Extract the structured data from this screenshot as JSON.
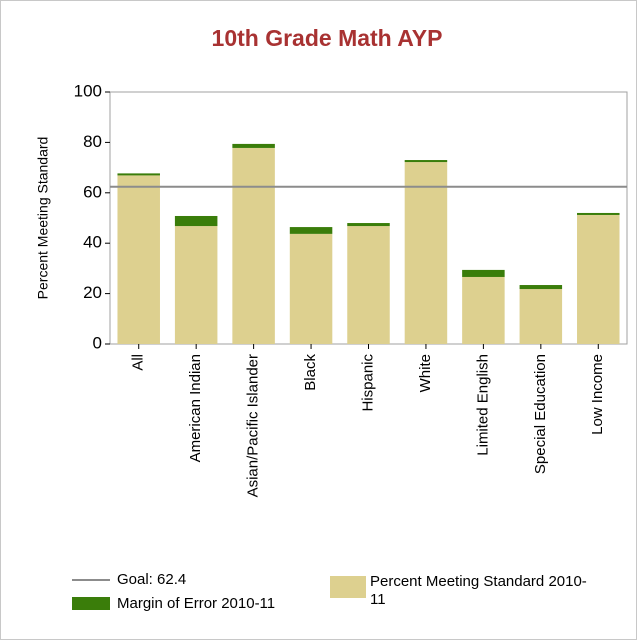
{
  "chart_data": {
    "type": "stacked_bar",
    "title": "10th Grade Math AYP",
    "y_label": "Percent Meeting Standard",
    "categories": [
      "All",
      "American Indian",
      "Asian/Pacific Islander",
      "Black",
      "Hispanic",
      "White",
      "Limited English",
      "Special Education",
      "Low Income"
    ],
    "series": [
      {
        "name": "Percent Meeting Standard 2010-11",
        "color": "#ddd08f",
        "values": [
          66.9,
          46.8,
          77.8,
          43.7,
          46.8,
          72.2,
          26.6,
          21.8,
          51.2
        ]
      },
      {
        "name": "Margin of Error 2010-11",
        "color": "#3a7d0a",
        "values": [
          0.8,
          4.0,
          1.6,
          2.7,
          1.2,
          0.8,
          2.8,
          1.6,
          0.8
        ]
      }
    ],
    "goal": {
      "name": "Goal: 62.4",
      "value": 62.4,
      "color": "#8c8c8c"
    },
    "ylim": [
      0,
      100
    ],
    "yticks": [
      0,
      20,
      40,
      60,
      80,
      100
    ]
  }
}
